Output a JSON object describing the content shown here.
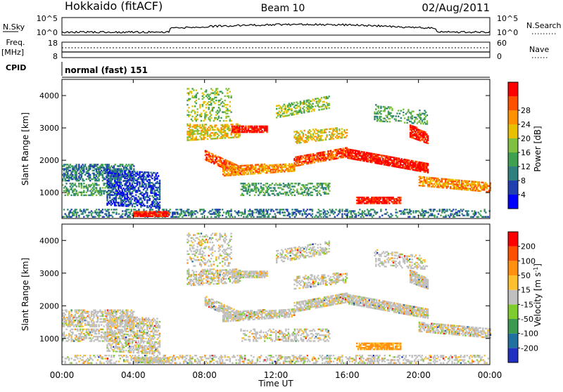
{
  "header": {
    "station": "Hokkaido (fitACF)",
    "beam": "Beam 10",
    "date": "02/Aug/2011"
  },
  "top_panels": {
    "nsky_label": "N.Sky",
    "nsky_ticks": [
      "10^5",
      "10^0"
    ],
    "nsearch_label": "N.Search",
    "nsearch_ticks": [
      "10^5",
      "10^0"
    ],
    "freq_label": "Freq.",
    "freq_unit": "[MHz]",
    "freq_ticks": [
      "18",
      "8"
    ],
    "nave_label": "Nave",
    "nave_ticks": [
      "60",
      "0"
    ],
    "cpid_label": "CPID",
    "cpid_value": "normal (fast) 151"
  },
  "chart_data": [
    {
      "type": "heatmap",
      "ylabel": "Slant Range [km]",
      "yticks": [
        "1000",
        "2000",
        "3000",
        "4000"
      ],
      "ylim": [
        200,
        4500
      ],
      "xlim": [
        0,
        24
      ],
      "colorbar": {
        "label": "Power [dB]",
        "ticks": [
          "4",
          "8",
          "12",
          "16",
          "20",
          "24",
          "28"
        ],
        "colors": [
          "#0000ff",
          "#2040b0",
          "#2f7f7f",
          "#3fa050",
          "#7fc040",
          "#e8c000",
          "#ff9000",
          "#ff5000",
          "#ff0000"
        ]
      }
    },
    {
      "type": "heatmap",
      "ylabel": "Slant Range [km]",
      "yticks": [
        "1000",
        "2000",
        "3000",
        "4000"
      ],
      "ylim": [
        200,
        4500
      ],
      "xlim": [
        0,
        24
      ],
      "xlabel": "Time UT",
      "xticks": [
        "00:00",
        "04:00",
        "08:00",
        "12:00",
        "16:00",
        "20:00",
        "00:00"
      ],
      "colorbar": {
        "label": "Velocity",
        "unit_sup": "-1",
        "ticks": [
          "200",
          "100",
          "50",
          "15",
          "-15",
          "-50",
          "-100",
          "-200"
        ],
        "colors": [
          "#2030c0",
          "#2070a0",
          "#3c9a50",
          "#7fcc30",
          "#c0c0c0",
          "#ffc030",
          "#ff9010",
          "#ff5000",
          "#ff0000"
        ]
      }
    }
  ]
}
